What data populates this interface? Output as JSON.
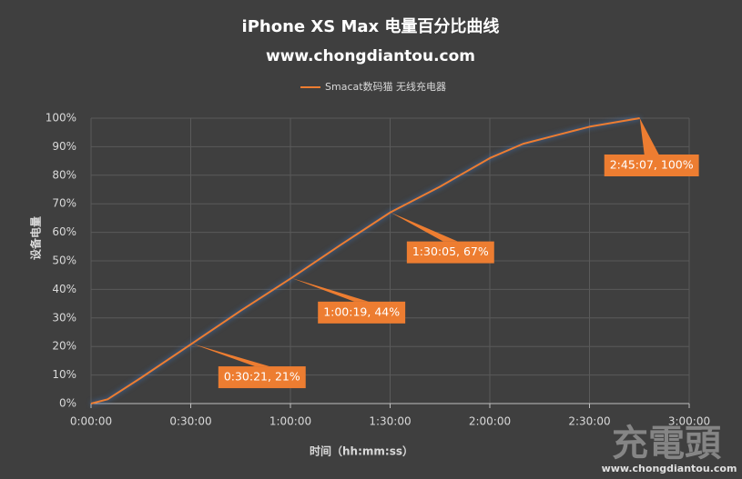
{
  "chart_data": {
    "type": "line",
    "title": "iPhone XS Max 电量百分比曲线",
    "subtitle": "www.chongdiantou.com",
    "x_label": "时间（hh:mm:ss）",
    "y_label": "设备电量",
    "x": [
      0,
      300,
      900,
      1821,
      2700,
      3619,
      4500,
      5405,
      6300,
      7200,
      7800,
      8400,
      9000,
      9907
    ],
    "series": [
      {
        "name": "Smacat数码猫 无线充电器",
        "color": "#ed7d31",
        "values": [
          0,
          1.5,
          9,
          21,
          32.5,
          44,
          55.5,
          67,
          76,
          86,
          91,
          94,
          97,
          100
        ]
      }
    ],
    "xlim": [
      0,
      10800
    ],
    "xticks": [
      {
        "value": 0,
        "label": "0:00:00"
      },
      {
        "value": 1800,
        "label": "0:30:00"
      },
      {
        "value": 3600,
        "label": "1:00:00"
      },
      {
        "value": 5400,
        "label": "1:30:00"
      },
      {
        "value": 7200,
        "label": "2:00:00"
      },
      {
        "value": 9000,
        "label": "2:30:00"
      },
      {
        "value": 10800,
        "label": "3:00:00"
      }
    ],
    "ylim": [
      0,
      100
    ],
    "yticks": [
      {
        "value": 0,
        "label": "0%"
      },
      {
        "value": 10,
        "label": "10%"
      },
      {
        "value": 20,
        "label": "20%"
      },
      {
        "value": 30,
        "label": "30%"
      },
      {
        "value": 40,
        "label": "40%"
      },
      {
        "value": 50,
        "label": "50%"
      },
      {
        "value": 60,
        "label": "60%"
      },
      {
        "value": 70,
        "label": "70%"
      },
      {
        "value": 80,
        "label": "80%"
      },
      {
        "value": 90,
        "label": "90%"
      },
      {
        "value": 100,
        "label": "100%"
      }
    ],
    "grid": true,
    "legend": "top",
    "annotations": [
      {
        "x": 1821,
        "y": 21,
        "label": "0:30:21, 21%"
      },
      {
        "x": 3619,
        "y": 44,
        "label": "1:00:19, 44%"
      },
      {
        "x": 5405,
        "y": 67,
        "label": "1:30:05, 67%"
      },
      {
        "x": 9907,
        "y": 100,
        "label": "2:45:07, 100%"
      }
    ],
    "watermark": {
      "logo": "充電頭",
      "url": "www.chongdiantou.com"
    }
  }
}
